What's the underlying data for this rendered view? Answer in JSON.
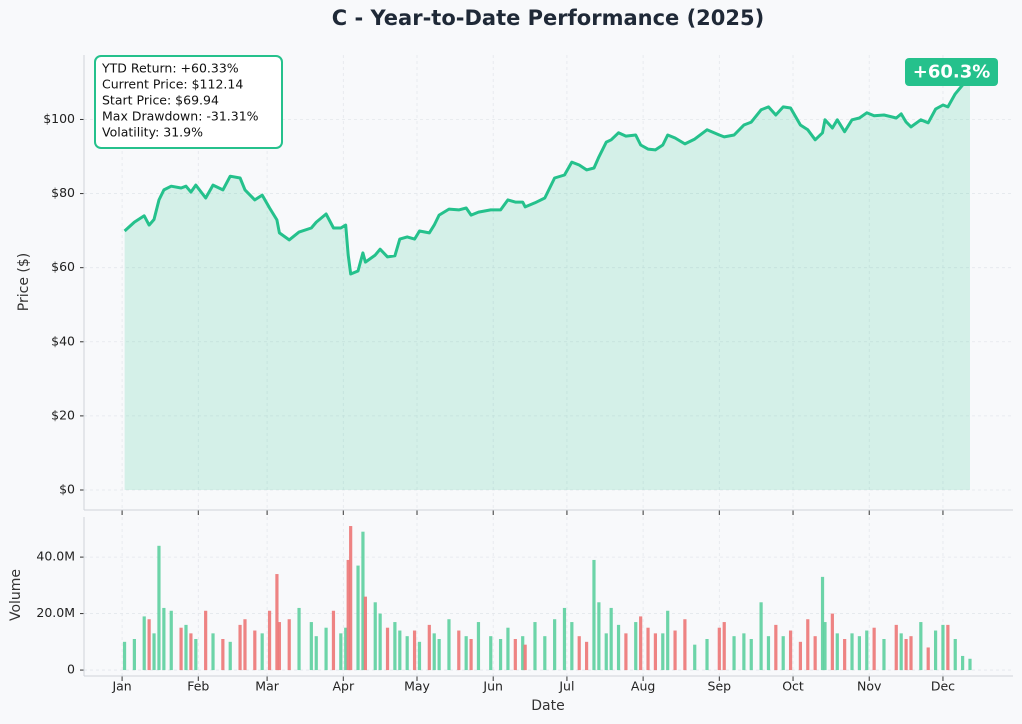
{
  "chart_data": [
    {
      "type": "area",
      "title": "C - Year-to-Date Performance (2025)",
      "y_label": "Price ($)",
      "x": [
        2,
        6,
        10,
        12,
        14,
        16,
        18,
        21,
        25,
        27,
        29,
        31,
        35,
        38,
        42,
        45,
        49,
        51,
        55,
        58,
        61,
        64,
        65,
        69,
        73,
        78,
        80,
        84,
        87,
        90,
        92,
        93,
        94,
        97,
        99,
        100,
        104,
        106,
        109,
        112,
        114,
        117,
        120,
        122,
        126,
        128,
        130,
        134,
        138,
        141,
        143,
        146,
        151,
        155,
        158,
        161,
        164,
        165,
        169,
        173,
        177,
        181,
        184,
        187,
        190,
        193,
        195,
        198,
        200,
        203,
        206,
        210,
        212,
        215,
        218,
        221,
        223,
        226,
        230,
        234,
        239,
        244,
        246,
        250,
        254,
        257,
        261,
        264,
        267,
        270,
        273,
        277,
        280,
        283,
        286,
        287,
        290,
        292,
        295,
        298,
        301,
        304,
        307,
        311,
        316,
        318,
        320,
        322,
        326,
        329,
        332,
        335,
        337,
        340,
        343,
        346
      ],
      "series": [
        {
          "name": "Price",
          "color": "#25c18c",
          "values": [
            69.9,
            72.3,
            74,
            71.5,
            73,
            78.3,
            81,
            82,
            81.5,
            82,
            80.4,
            82.3,
            78.8,
            82.3,
            81,
            84.7,
            84.2,
            81,
            78.3,
            79.6,
            76.1,
            72.9,
            69.4,
            67.5,
            69.6,
            70.7,
            72.3,
            74.5,
            70.7,
            70.7,
            71.5,
            63.4,
            58.3,
            59.1,
            64,
            61.5,
            63.4,
            65,
            62.9,
            63.2,
            67.7,
            68.3,
            67.7,
            69.9,
            69.4,
            71.5,
            74.2,
            75.8,
            75.6,
            76.1,
            74.2,
            75,
            75.6,
            75.6,
            78.3,
            77.7,
            77.7,
            76.4,
            77.5,
            78.8,
            84.2,
            85,
            88.5,
            87.7,
            86.4,
            86.9,
            89.9,
            93.9,
            94.5,
            96.4,
            95.5,
            95.8,
            93.1,
            92,
            91.8,
            93.1,
            95.8,
            95,
            93.4,
            94.7,
            97.2,
            95.8,
            95.3,
            95.8,
            98.5,
            99.3,
            102.6,
            103.4,
            101.2,
            103.4,
            103.1,
            98.5,
            97.2,
            94.5,
            96.4,
            99.9,
            97.7,
            99.9,
            96.7,
            99.9,
            100.4,
            101.8,
            101,
            101.2,
            100.4,
            101.5,
            99.3,
            98,
            99.9,
            99.1,
            102.8,
            103.9,
            103.4,
            106.9,
            109.3,
            112.1
          ]
        }
      ],
      "xlim": [
        -14.5,
        363.5
      ],
      "ylim": [
        -5.4,
        117.4
      ],
      "yticks": [
        {
          "value": 0,
          "label": "$0"
        },
        {
          "value": 20,
          "label": "$20"
        },
        {
          "value": 40,
          "label": "$40"
        },
        {
          "value": 60,
          "label": "$60"
        },
        {
          "value": 80,
          "label": "$80"
        },
        {
          "value": 100,
          "label": "$100"
        }
      ],
      "grid": true,
      "annotations": [
        "YTD Return: +60.33%",
        "Current Price: $112.14",
        "Start Price: $69.94",
        "Max Drawdown: -31.31%",
        "Volatility: 31.9%"
      ],
      "badge": "+60.3%"
    },
    {
      "type": "bar",
      "x_label": "Date",
      "y_label": "Volume",
      "up_color": "#5ccf9e",
      "down_color": "#ec7676",
      "x": [
        2,
        6,
        10,
        12,
        14,
        16,
        18,
        21,
        25,
        27,
        29,
        31,
        35,
        38,
        42,
        45,
        49,
        51,
        55,
        58,
        61,
        64,
        65,
        69,
        73,
        78,
        80,
        84,
        87,
        90,
        92,
        93,
        94,
        97,
        99,
        100,
        104,
        106,
        109,
        112,
        114,
        117,
        120,
        122,
        126,
        128,
        130,
        134,
        138,
        141,
        143,
        146,
        151,
        155,
        158,
        161,
        164,
        165,
        169,
        173,
        177,
        181,
        184,
        187,
        190,
        193,
        195,
        198,
        200,
        203,
        206,
        210,
        212,
        215,
        218,
        221,
        223,
        226,
        230,
        234,
        239,
        244,
        246,
        250,
        254,
        257,
        261,
        264,
        267,
        270,
        273,
        277,
        280,
        283,
        286,
        287,
        290,
        292,
        295,
        298,
        301,
        304,
        307,
        311,
        316,
        318,
        320,
        322,
        326,
        329,
        332,
        335,
        337,
        340,
        343,
        346
      ],
      "values": [
        10000000,
        11000000,
        19000000,
        18000000,
        13000000,
        44000000,
        22000000,
        21000000,
        15000000,
        16000000,
        13000000,
        11000000,
        21000000,
        13000000,
        11000000,
        10000000,
        16000000,
        18000000,
        14000000,
        13000000,
        21000000,
        34000000,
        17000000,
        18000000,
        22000000,
        17000000,
        12000000,
        15000000,
        21000000,
        13000000,
        15000000,
        39000000,
        51000000,
        37000000,
        49000000,
        26000000,
        24000000,
        20000000,
        15000000,
        17000000,
        14000000,
        12000000,
        14000000,
        10000000,
        16000000,
        13000000,
        11000000,
        18000000,
        14000000,
        12000000,
        11000000,
        17000000,
        12000000,
        11000000,
        15000000,
        11000000,
        12000000,
        9000000,
        17000000,
        12000000,
        18000000,
        22000000,
        17000000,
        12000000,
        10000000,
        39000000,
        24000000,
        13000000,
        22000000,
        16000000,
        13000000,
        17000000,
        19000000,
        15000000,
        13000000,
        13000000,
        21000000,
        14000000,
        18000000,
        9000000,
        11000000,
        15000000,
        17000000,
        12000000,
        13000000,
        11000000,
        24000000,
        12000000,
        16000000,
        12000000,
        14000000,
        10000000,
        18000000,
        12000000,
        33000000,
        17000000,
        20000000,
        13000000,
        11000000,
        13000000,
        12000000,
        14000000,
        15000000,
        11000000,
        16000000,
        13000000,
        11000000,
        12000000,
        17000000,
        8000000,
        14000000,
        16000000,
        16000000,
        11000000,
        5000000,
        4000000
      ],
      "xlim": [
        -14.5,
        363.5
      ],
      "ylim": [
        -2100000,
        54200000
      ],
      "xticks": [
        {
          "value": 1,
          "label": "Jan"
        },
        {
          "value": 32,
          "label": "Feb"
        },
        {
          "value": 60,
          "label": "Mar"
        },
        {
          "value": 91,
          "label": "Apr"
        },
        {
          "value": 121,
          "label": "May"
        },
        {
          "value": 152,
          "label": "Jun"
        },
        {
          "value": 182,
          "label": "Jul"
        },
        {
          "value": 213,
          "label": "Aug"
        },
        {
          "value": 244,
          "label": "Sep"
        },
        {
          "value": 274,
          "label": "Oct"
        },
        {
          "value": 305,
          "label": "Nov"
        },
        {
          "value": 335,
          "label": "Dec"
        }
      ],
      "yticks": [
        0,
        {
          "value": 20000000,
          "label": "20.0M"
        },
        {
          "value": 40000000,
          "label": "40.0M"
        }
      ],
      "grid": true
    }
  ]
}
